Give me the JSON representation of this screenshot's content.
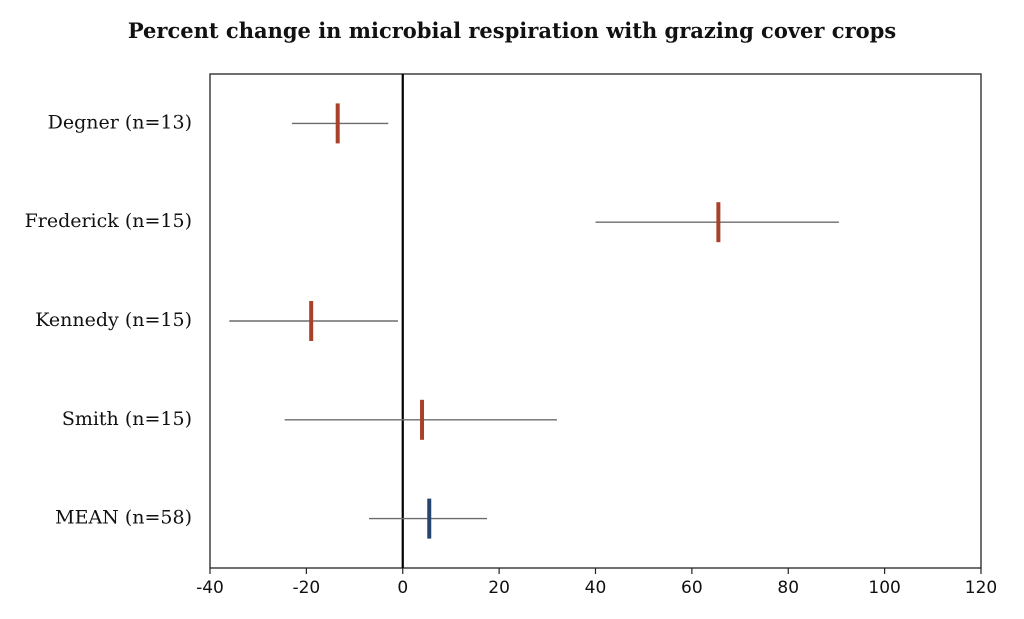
{
  "chart_data": {
    "type": "forest",
    "title": "Percent change in microbial respiration with grazing cover crops",
    "xlabel": "",
    "ylabel": "",
    "xlim": [
      -40,
      120
    ],
    "xticks": [
      -40,
      -20,
      0,
      20,
      40,
      60,
      80,
      100,
      120
    ],
    "xtick_labels": [
      "-40",
      "-20",
      "0",
      "20",
      "40",
      "60",
      "80",
      "100",
      "120"
    ],
    "reference_line": 0,
    "grid": false,
    "legend": "none",
    "studies": [
      {
        "label": "Degner (n=13)",
        "estimate": -13.5,
        "ci_low": -23,
        "ci_high": -3,
        "color": "#a8402a"
      },
      {
        "label": "Frederick (n=15)",
        "estimate": 65.5,
        "ci_low": 40,
        "ci_high": 90.5,
        "color": "#a8402a"
      },
      {
        "label": "Kennedy (n=15)",
        "estimate": -19,
        "ci_low": -36,
        "ci_high": -1,
        "color": "#a8402a"
      },
      {
        "label": "Smith (n=15)",
        "estimate": 4,
        "ci_low": -24.5,
        "ci_high": 32,
        "color": "#a8402a"
      },
      {
        "label": "MEAN (n=58)",
        "estimate": 5.5,
        "ci_low": -7,
        "ci_high": 17.5,
        "color": "#24466e"
      }
    ]
  }
}
